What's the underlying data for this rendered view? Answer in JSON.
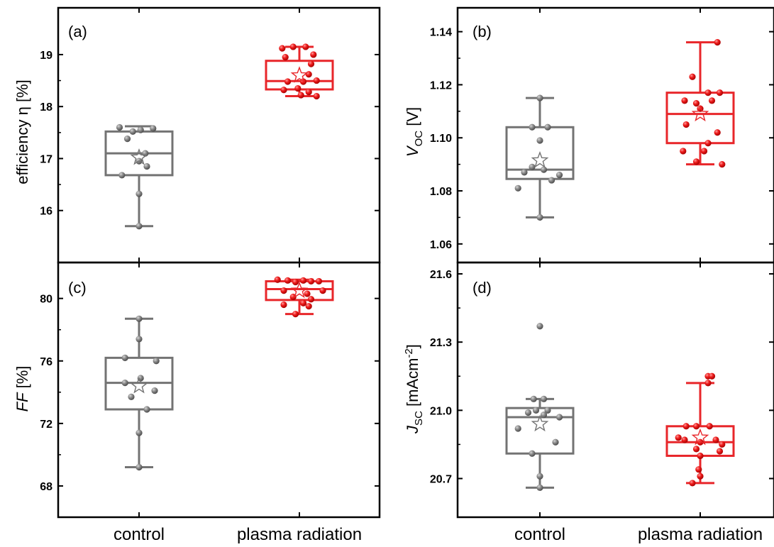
{
  "chart_data": [
    {
      "type": "box",
      "panel_label": "(a)",
      "ylabel": "efficiency η [%]",
      "ylim": [
        15.0,
        19.9
      ],
      "yticks": [
        16,
        17,
        18,
        19
      ],
      "categories": [
        "control",
        "plasma radiation"
      ],
      "colors": [
        "#737373",
        "#e8262a"
      ],
      "boxes": [
        {
          "name": "control",
          "whisker_low": 15.7,
          "q1": 16.68,
          "median": 17.1,
          "q3": 17.52,
          "whisker_high": 17.62,
          "mean": 17.02,
          "points": [
            [
              -0.25,
              17.6
            ],
            [
              -0.15,
              17.38
            ],
            [
              -0.08,
              17.52
            ],
            [
              0.02,
              17.55
            ],
            [
              0.18,
              17.58
            ],
            [
              0.08,
              17.1
            ],
            [
              0.1,
              16.85
            ],
            [
              0.0,
              16.95
            ],
            [
              -0.22,
              16.68
            ],
            [
              0.0,
              16.32
            ],
            [
              0.0,
              15.7
            ]
          ]
        },
        {
          "name": "plasma radiation",
          "whisker_low": 18.2,
          "q1": 18.33,
          "median": 18.49,
          "q3": 18.88,
          "whisker_high": 19.15,
          "mean": 18.6,
          "points": [
            [
              -0.08,
              19.15
            ],
            [
              0.08,
              19.15
            ],
            [
              -0.22,
              19.12
            ],
            [
              0.18,
              19.0
            ],
            [
              -0.18,
              18.95
            ],
            [
              0.15,
              18.82
            ],
            [
              -0.15,
              18.48
            ],
            [
              0.05,
              18.48
            ],
            [
              0.22,
              18.5
            ],
            [
              0.12,
              18.62
            ],
            [
              -0.02,
              18.35
            ],
            [
              -0.2,
              18.32
            ],
            [
              0.12,
              18.28
            ],
            [
              0.02,
              18.22
            ],
            [
              0.22,
              18.2
            ]
          ]
        }
      ]
    },
    {
      "type": "box",
      "panel_label": "(b)",
      "ylabel": "V_OC [V]",
      "ylim": [
        1.053,
        1.149
      ],
      "yticks": [
        1.06,
        1.08,
        1.1,
        1.12,
        1.14
      ],
      "tick_labels": [
        "1.06",
        "1.08",
        "1.10",
        "1.12",
        "1.14"
      ],
      "categories": [
        "control",
        "plasma radiation"
      ],
      "colors": [
        "#737373",
        "#e8262a"
      ],
      "boxes": [
        {
          "name": "control",
          "whisker_low": 1.07,
          "q1": 1.0845,
          "median": 1.088,
          "q3": 1.104,
          "whisker_high": 1.115,
          "mean": 1.0915,
          "points": [
            [
              0.0,
              1.115
            ],
            [
              -0.1,
              1.104
            ],
            [
              0.1,
              1.104
            ],
            [
              0.0,
              1.099
            ],
            [
              -0.1,
              1.089
            ],
            [
              0.05,
              1.088
            ],
            [
              -0.2,
              1.087
            ],
            [
              0.25,
              1.086
            ],
            [
              0.15,
              1.084
            ],
            [
              -0.28,
              1.081
            ],
            [
              0.0,
              1.07
            ]
          ]
        },
        {
          "name": "plasma radiation",
          "whisker_low": 1.09,
          "q1": 1.098,
          "median": 1.109,
          "q3": 1.117,
          "whisker_high": 1.136,
          "mean": 1.109,
          "points": [
            [
              0.22,
              1.136
            ],
            [
              -0.1,
              1.123
            ],
            [
              0.1,
              1.117
            ],
            [
              0.25,
              1.117
            ],
            [
              -0.2,
              1.114
            ],
            [
              0.15,
              1.114
            ],
            [
              -0.05,
              1.113
            ],
            [
              0.0,
              1.111
            ],
            [
              -0.18,
              1.105
            ],
            [
              0.22,
              1.102
            ],
            [
              0.1,
              1.098
            ],
            [
              -0.22,
              1.095
            ],
            [
              0.05,
              1.095
            ],
            [
              -0.05,
              1.091
            ],
            [
              0.28,
              1.09
            ]
          ]
        }
      ]
    },
    {
      "type": "box",
      "panel_label": "(c)",
      "ylabel": "FF [%]",
      "ylim": [
        66.0,
        82.3
      ],
      "yticks": [
        68,
        72,
        76,
        80
      ],
      "categories": [
        "control",
        "plasma radiation"
      ],
      "colors": [
        "#737373",
        "#e8262a"
      ],
      "boxes": [
        {
          "name": "control",
          "whisker_low": 69.2,
          "q1": 72.9,
          "median": 74.6,
          "q3": 76.2,
          "whisker_high": 78.7,
          "mean": 74.4,
          "points": [
            [
              0.0,
              78.7
            ],
            [
              0.0,
              77.4
            ],
            [
              -0.18,
              76.2
            ],
            [
              0.22,
              76.0
            ],
            [
              -0.18,
              74.6
            ],
            [
              0.02,
              74.9
            ],
            [
              -0.1,
              73.7
            ],
            [
              0.2,
              74.1
            ],
            [
              0.1,
              72.9
            ],
            [
              0.0,
              71.4
            ],
            [
              0.0,
              69.2
            ]
          ]
        },
        {
          "name": "plasma radiation",
          "whisker_low": 79.0,
          "q1": 79.9,
          "median": 80.6,
          "q3": 81.1,
          "whisker_high": 81.2,
          "mean": 80.5,
          "points": [
            [
              -0.28,
              81.2
            ],
            [
              -0.15,
              81.15
            ],
            [
              0.05,
              81.15
            ],
            [
              0.15,
              81.1
            ],
            [
              0.25,
              81.1
            ],
            [
              -0.05,
              81.05
            ],
            [
              -0.2,
              80.5
            ],
            [
              0.3,
              80.5
            ],
            [
              0.1,
              80.3
            ],
            [
              -0.08,
              80.1
            ],
            [
              0.15,
              79.95
            ],
            [
              0.05,
              79.7
            ],
            [
              -0.2,
              79.6
            ],
            [
              0.12,
              79.5
            ],
            [
              -0.05,
              79.0
            ]
          ]
        }
      ]
    },
    {
      "type": "box",
      "panel_label": "(d)",
      "ylabel": "J_SC [mAcm^-2]",
      "ylim": [
        20.53,
        21.65
      ],
      "yticks": [
        20.7,
        21.0,
        21.3,
        21.6
      ],
      "tick_labels": [
        "20.7",
        "21.0",
        "21.3",
        "21.6"
      ],
      "categories": [
        "control",
        "plasma radiation"
      ],
      "colors": [
        "#737373",
        "#e8262a"
      ],
      "boxes": [
        {
          "name": "control",
          "whisker_low": 20.66,
          "q1": 20.81,
          "median": 20.97,
          "q3": 21.01,
          "whisker_high": 21.05,
          "mean": 20.94,
          "points": [
            [
              0.0,
              21.37
            ],
            [
              -0.08,
              21.05
            ],
            [
              0.05,
              21.05
            ],
            [
              -0.05,
              21.0
            ],
            [
              0.1,
              21.0
            ],
            [
              0.05,
              20.98
            ],
            [
              -0.15,
              20.99
            ],
            [
              0.25,
              20.97
            ],
            [
              -0.28,
              20.92
            ],
            [
              0.2,
              20.86
            ],
            [
              -0.1,
              20.81
            ],
            [
              0.0,
              20.71
            ],
            [
              0.0,
              20.66
            ]
          ]
        },
        {
          "name": "plasma radiation",
          "whisker_low": 20.68,
          "q1": 20.8,
          "median": 20.86,
          "q3": 20.93,
          "whisker_high": 21.12,
          "mean": 20.88,
          "points": [
            [
              0.1,
              21.15
            ],
            [
              0.15,
              21.15
            ],
            [
              0.1,
              21.12
            ],
            [
              -0.18,
              20.93
            ],
            [
              -0.05,
              20.93
            ],
            [
              0.12,
              20.93
            ],
            [
              -0.28,
              20.88
            ],
            [
              -0.2,
              20.87
            ],
            [
              0.0,
              20.86
            ],
            [
              0.2,
              20.87
            ],
            [
              0.28,
              20.85
            ],
            [
              0.25,
              20.82
            ],
            [
              -0.05,
              20.83
            ],
            [
              0.0,
              20.8
            ],
            [
              -0.02,
              20.74
            ],
            [
              0.0,
              20.71
            ],
            [
              -0.1,
              20.68
            ]
          ]
        }
      ]
    }
  ]
}
